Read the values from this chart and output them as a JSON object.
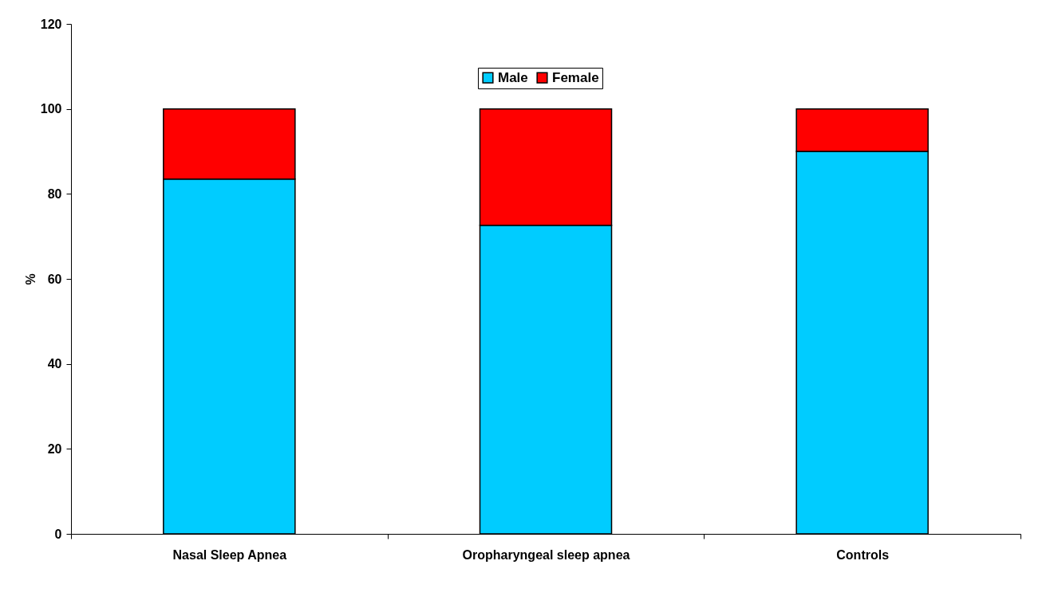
{
  "chart_data": {
    "type": "bar",
    "stacked": true,
    "ylabel": "%",
    "categories": [
      "Nasal Sleep Apnea",
      "Oropharyngeal   sleep apnea",
      "Controls"
    ],
    "series": [
      {
        "name": "Male",
        "color": "#00ccff",
        "values": [
          83.5,
          72.6,
          90.0
        ]
      },
      {
        "name": "Female",
        "color": "#ff0000",
        "values": [
          16.5,
          27.4,
          10.0
        ]
      }
    ],
    "ylim": [
      0,
      120
    ],
    "yticks": [
      0,
      20,
      40,
      60,
      80,
      100,
      120
    ],
    "legend": "top",
    "grid": false
  }
}
